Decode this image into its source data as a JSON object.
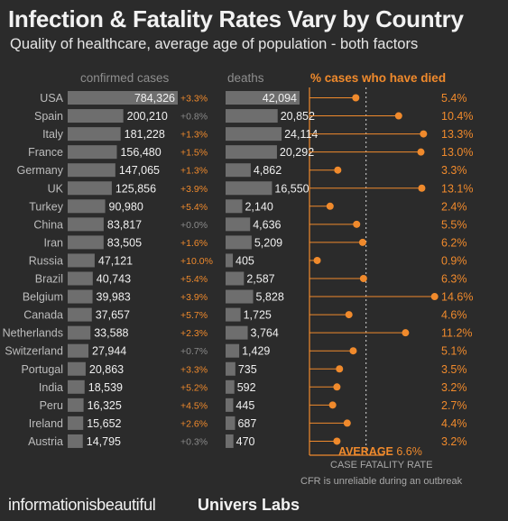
{
  "header": {
    "title": "Infection & Fatality Rates Vary by Country",
    "subtitle": "Quality of healthcare, average age of population - both factors"
  },
  "columns": {
    "cases": "confirmed cases",
    "deaths": "deaths",
    "pct": "% cases who have died"
  },
  "footer": {
    "average_label": "AVERAGE",
    "average_value": "6.6%",
    "cfr_label": "CASE FATALITY RATE",
    "note": "CFR is unreliable during an outbreak",
    "brand_left": "informationisbeautiful",
    "brand_right": "Univers Labs"
  },
  "colors": {
    "background": "#2b2b2b",
    "bar": "#6e6e6e",
    "accent": "#f08a2c",
    "growth_muted": "#8a8a8a"
  },
  "chart_data": {
    "type": "bar",
    "average_cfr": 6.6,
    "rows": [
      {
        "country": "USA",
        "cases": 784326,
        "cases_label": "784,326",
        "growth": "+3.3%",
        "growth_high": true,
        "deaths": 42094,
        "deaths_label": "42,094",
        "cfr": 5.4,
        "cfr_label": "5.4%"
      },
      {
        "country": "Spain",
        "cases": 200210,
        "cases_label": "200,210",
        "growth": "+0.8%",
        "growth_high": false,
        "deaths": 20852,
        "deaths_label": "20,852",
        "cfr": 10.4,
        "cfr_label": "10.4%"
      },
      {
        "country": "Italy",
        "cases": 181228,
        "cases_label": "181,228",
        "growth": "+1.3%",
        "growth_high": true,
        "deaths": 24114,
        "deaths_label": "24,114",
        "cfr": 13.3,
        "cfr_label": "13.3%"
      },
      {
        "country": "France",
        "cases": 156480,
        "cases_label": "156,480",
        "growth": "+1.5%",
        "growth_high": true,
        "deaths": 20292,
        "deaths_label": "20,292",
        "cfr": 13.0,
        "cfr_label": "13.0%"
      },
      {
        "country": "Germany",
        "cases": 147065,
        "cases_label": "147,065",
        "growth": "+1.3%",
        "growth_high": true,
        "deaths": 4862,
        "deaths_label": "4,862",
        "cfr": 3.3,
        "cfr_label": "3.3%"
      },
      {
        "country": "UK",
        "cases": 125856,
        "cases_label": "125,856",
        "growth": "+3.9%",
        "growth_high": true,
        "deaths": 16550,
        "deaths_label": "16,550",
        "cfr": 13.1,
        "cfr_label": "13.1%"
      },
      {
        "country": "Turkey",
        "cases": 90980,
        "cases_label": "90,980",
        "growth": "+5.4%",
        "growth_high": true,
        "deaths": 2140,
        "deaths_label": "2,140",
        "cfr": 2.4,
        "cfr_label": "2.4%"
      },
      {
        "country": "China",
        "cases": 83817,
        "cases_label": "83,817",
        "growth": "+0.0%",
        "growth_high": false,
        "deaths": 4636,
        "deaths_label": "4,636",
        "cfr": 5.5,
        "cfr_label": "5.5%"
      },
      {
        "country": "Iran",
        "cases": 83505,
        "cases_label": "83,505",
        "growth": "+1.6%",
        "growth_high": true,
        "deaths": 5209,
        "deaths_label": "5,209",
        "cfr": 6.2,
        "cfr_label": "6.2%"
      },
      {
        "country": "Russia",
        "cases": 47121,
        "cases_label": "47,121",
        "growth": "+10.0%",
        "growth_high": true,
        "deaths": 405,
        "deaths_label": "405",
        "cfr": 0.9,
        "cfr_label": "0.9%"
      },
      {
        "country": "Brazil",
        "cases": 40743,
        "cases_label": "40,743",
        "growth": "+5.4%",
        "growth_high": true,
        "deaths": 2587,
        "deaths_label": "2,587",
        "cfr": 6.3,
        "cfr_label": "6.3%"
      },
      {
        "country": "Belgium",
        "cases": 39983,
        "cases_label": "39,983",
        "growth": "+3.9%",
        "growth_high": true,
        "deaths": 5828,
        "deaths_label": "5,828",
        "cfr": 14.6,
        "cfr_label": "14.6%"
      },
      {
        "country": "Canada",
        "cases": 37657,
        "cases_label": "37,657",
        "growth": "+5.7%",
        "growth_high": true,
        "deaths": 1725,
        "deaths_label": "1,725",
        "cfr": 4.6,
        "cfr_label": "4.6%"
      },
      {
        "country": "Netherlands",
        "cases": 33588,
        "cases_label": "33,588",
        "growth": "+2.3%",
        "growth_high": true,
        "deaths": 3764,
        "deaths_label": "3,764",
        "cfr": 11.2,
        "cfr_label": "11.2%"
      },
      {
        "country": "Switzerland",
        "cases": 27944,
        "cases_label": "27,944",
        "growth": "+0.7%",
        "growth_high": false,
        "deaths": 1429,
        "deaths_label": "1,429",
        "cfr": 5.1,
        "cfr_label": "5.1%"
      },
      {
        "country": "Portugal",
        "cases": 20863,
        "cases_label": "20,863",
        "growth": "+3.3%",
        "growth_high": true,
        "deaths": 735,
        "deaths_label": "735",
        "cfr": 3.5,
        "cfr_label": "3.5%"
      },
      {
        "country": "India",
        "cases": 18539,
        "cases_label": "18,539",
        "growth": "+5.2%",
        "growth_high": true,
        "deaths": 592,
        "deaths_label": "592",
        "cfr": 3.2,
        "cfr_label": "3.2%"
      },
      {
        "country": "Peru",
        "cases": 16325,
        "cases_label": "16,325",
        "growth": "+4.5%",
        "growth_high": true,
        "deaths": 445,
        "deaths_label": "445",
        "cfr": 2.7,
        "cfr_label": "2.7%"
      },
      {
        "country": "Ireland",
        "cases": 15652,
        "cases_label": "15,652",
        "growth": "+2.6%",
        "growth_high": true,
        "deaths": 687,
        "deaths_label": "687",
        "cfr": 4.4,
        "cfr_label": "4.4%"
      },
      {
        "country": "Austria",
        "cases": 14795,
        "cases_label": "14,795",
        "growth": "+0.3%",
        "growth_high": false,
        "deaths": 470,
        "deaths_label": "470",
        "cfr": 3.2,
        "cfr_label": "3.2%"
      }
    ]
  }
}
